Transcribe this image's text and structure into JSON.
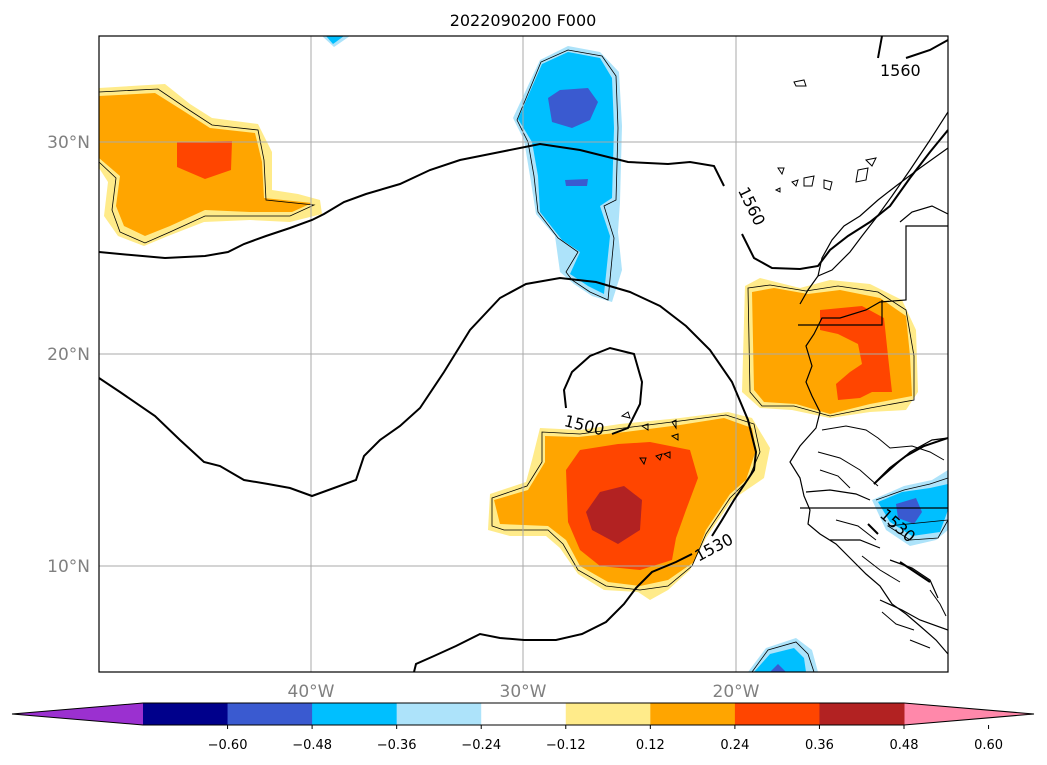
{
  "title": "2022090200 F000",
  "map": {
    "lat_labels": [
      "30°N",
      "20°N",
      "10°N"
    ],
    "lon_labels": [
      "40°W",
      "30°W",
      "20°W"
    ],
    "contour_labels": [
      "1560",
      "1560",
      "1500",
      "1530",
      "1530"
    ]
  },
  "colorbar": {
    "tick_labels": [
      "−0.60",
      "−0.48",
      "−0.36",
      "−0.24",
      "−0.12",
      "0.12",
      "0.24",
      "0.36",
      "0.48",
      "0.60"
    ],
    "colors": [
      "#9b30d0",
      "#00008b",
      "#3a5ad0",
      "#00bfff",
      "#ade3fa",
      "#ffffff",
      "#ffeb8a",
      "#ffa500",
      "#ff4500",
      "#b22222",
      "#ff88aa"
    ]
  },
  "palette": {
    "yellow": "#ffeb8a",
    "orange": "#ffa500",
    "red": "#ff4500",
    "darkred": "#b22222",
    "lightblue": "#ade3fa",
    "cyan": "#00bfff",
    "royalblue": "#3a5ad0"
  }
}
